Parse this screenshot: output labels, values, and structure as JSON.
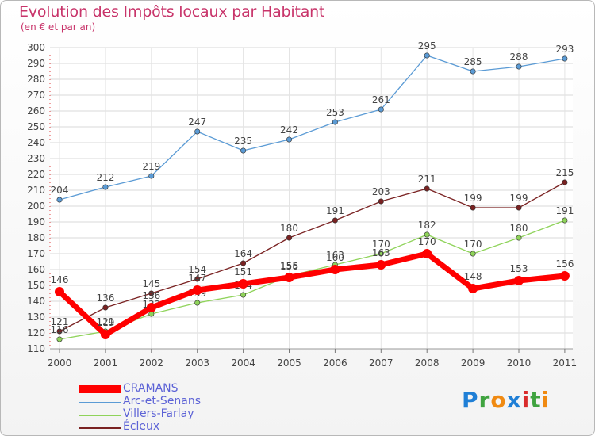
{
  "header": {
    "title": "Evolution des Impôts locaux par Habitant",
    "subtitle": "(en € et par an)"
  },
  "logo": {
    "letters": [
      "P",
      "r",
      "o",
      "x",
      "i",
      "t",
      "i"
    ],
    "colors": [
      "#1f7fd6",
      "#3fa33f",
      "#f08a12",
      "#1f7fd6",
      "#d92b2b",
      "#3fa33f",
      "#f08a12"
    ]
  },
  "chart_data": {
    "type": "line",
    "title": "Evolution des Impôts locaux par Habitant",
    "subtitle": "(en € et par an)",
    "x": [
      "2000",
      "2001",
      "2002",
      "2003",
      "2004",
      "2005",
      "2006",
      "2007",
      "2008",
      "2009",
      "2010",
      "2011"
    ],
    "ylim": [
      110,
      300
    ],
    "yticks": [
      110,
      120,
      130,
      140,
      150,
      160,
      170,
      180,
      190,
      200,
      210,
      220,
      230,
      240,
      250,
      260,
      270,
      280,
      290,
      300
    ],
    "grid": true,
    "legend_position": "bottom-left",
    "series": [
      {
        "name": "Arc-et-Senans",
        "color": "#5b9bd5",
        "values": [
          204,
          212,
          219,
          247,
          235,
          242,
          253,
          261,
          295,
          285,
          288,
          293
        ],
        "labels": [
          "204",
          "212",
          "219",
          "247",
          "235",
          "242",
          "253",
          "261",
          "295",
          "285",
          "288",
          "293"
        ]
      },
      {
        "name": "Écleux",
        "color": "#7a2222",
        "values": [
          121,
          136,
          145,
          154,
          164,
          180,
          191,
          203,
          211,
          199,
          199,
          215
        ],
        "labels": [
          "121",
          "136",
          "145",
          "154",
          "164",
          "180",
          "191",
          "203",
          "211",
          "199",
          "199",
          "215"
        ]
      },
      {
        "name": "Villers-Farlay",
        "color": "#8fd35a",
        "values": [
          116,
          121,
          132,
          139,
          144,
          156,
          163,
          170,
          182,
          170,
          180,
          191
        ],
        "labels": [
          "116",
          "121",
          "132",
          "139",
          "144",
          "156",
          "163",
          "170",
          "182",
          "170",
          "180",
          "191"
        ]
      },
      {
        "name": "CRAMANS",
        "color": "#ff0000",
        "values": [
          146,
          119,
          136,
          147,
          151,
          155,
          160,
          163,
          170,
          148,
          153,
          156
        ],
        "labels": [
          "146",
          "119",
          "136",
          "147",
          "151",
          "155",
          "160",
          "163",
          "170",
          "148",
          "153",
          "156"
        ]
      }
    ],
    "legend": [
      "CRAMANS",
      "Arc-et-Senans",
      "Villers-Farlay",
      "Écleux"
    ]
  }
}
